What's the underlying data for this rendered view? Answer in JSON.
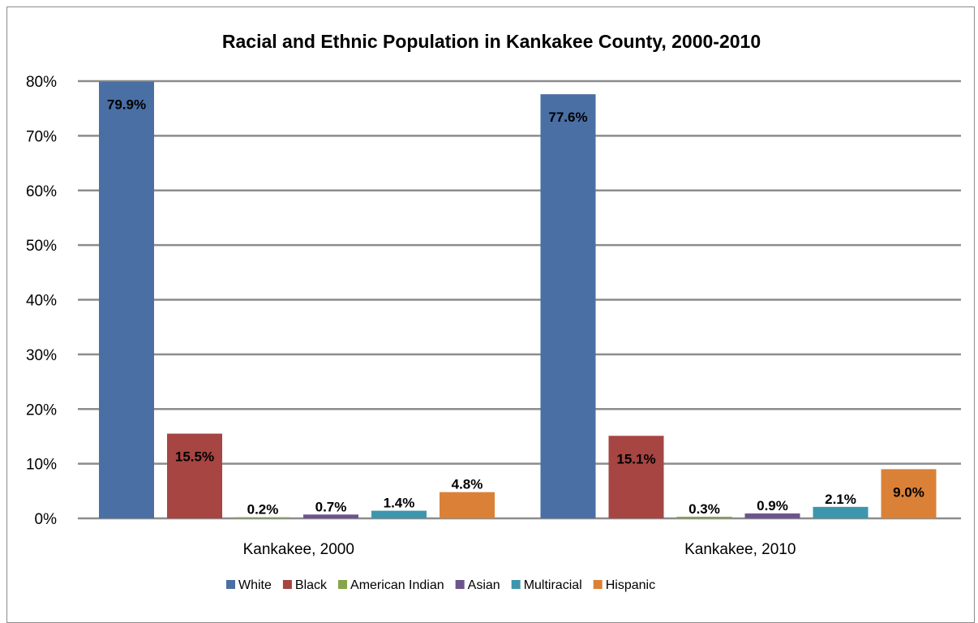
{
  "chart_data": {
    "type": "bar",
    "title": "Racial and Ethnic Population in Kankakee County, 2000-2010",
    "categories": [
      "Kankakee, 2000",
      "Kankakee, 2010"
    ],
    "series": [
      {
        "name": "White",
        "color": "#4a6fa5",
        "values": [
          79.9,
          77.6
        ],
        "labels": [
          "79.9%",
          "77.6%"
        ]
      },
      {
        "name": "Black",
        "color": "#a64542",
        "values": [
          15.5,
          15.1
        ],
        "labels": [
          "15.5%",
          "15.1%"
        ]
      },
      {
        "name": "American Indian",
        "color": "#86a44a",
        "values": [
          0.2,
          0.3
        ],
        "labels": [
          "0.2%",
          "0.3%"
        ]
      },
      {
        "name": "Asian",
        "color": "#6e548d",
        "values": [
          0.7,
          0.9
        ],
        "labels": [
          "0.7%",
          "0.9%"
        ]
      },
      {
        "name": "Multiracial",
        "color": "#3d96ae",
        "values": [
          1.4,
          2.1
        ],
        "labels": [
          "1.4%",
          "2.1%"
        ]
      },
      {
        "name": "Hispanic",
        "color": "#da8137",
        "values": [
          4.8,
          9.0
        ],
        "labels": [
          "4.8%",
          "9.0%"
        ]
      }
    ],
    "y_ticks": [
      "0%",
      "10%",
      "20%",
      "30%",
      "40%",
      "50%",
      "60%",
      "70%",
      "80%"
    ],
    "ylim": [
      0,
      80
    ],
    "grid": true,
    "legend_position": "bottom"
  }
}
